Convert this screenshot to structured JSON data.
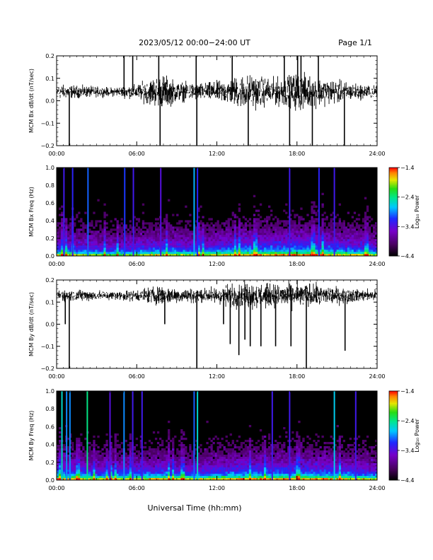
{
  "header": {
    "title": "2023/05/12  00:00−24:00 UT",
    "page": "Page 1/1"
  },
  "xlabel": "Universal Time (hh:mm)",
  "colors": {
    "background": "#ffffff",
    "trace": "#000000",
    "axis": "#000000",
    "spec_bg": "#000000"
  },
  "x_ticks": [
    "00:00",
    "06:00",
    "12:00",
    "18:00",
    "24:00"
  ],
  "chart_data": [
    {
      "type": "line",
      "ylabel": "MCM Bx dB/dt (nT/sec)",
      "xlim": [
        0,
        24
      ],
      "ylim": [
        -0.2,
        0.2
      ],
      "yticks": [
        "0.2",
        "0.1",
        "0.0",
        "−0.1",
        "−0.2"
      ],
      "ytick_values": [
        0.2,
        0.1,
        0.0,
        -0.1,
        -0.2
      ],
      "baseline": 0.04,
      "activity_envelope": {
        "hours": [
          0,
          2,
          4,
          6,
          7,
          8,
          9,
          10,
          11,
          12,
          13,
          14,
          15,
          16,
          17,
          18,
          19,
          20,
          21,
          22,
          23,
          24
        ],
        "amplitude": [
          0.05,
          0.04,
          0.03,
          0.05,
          0.09,
          0.12,
          0.07,
          0.06,
          0.06,
          0.07,
          0.09,
          0.12,
          0.11,
          0.09,
          0.1,
          0.13,
          0.11,
          0.09,
          0.08,
          0.06,
          0.05,
          0.04
        ]
      },
      "spikes": [
        {
          "hour": 0.95,
          "value": -0.2
        },
        {
          "hour": 5.05,
          "value": 0.2
        },
        {
          "hour": 5.7,
          "value": 0.2
        },
        {
          "hour": 7.65,
          "value": 0.2
        },
        {
          "hour": 7.75,
          "value": -0.2
        },
        {
          "hour": 10.45,
          "value": 0.2
        },
        {
          "hour": 10.5,
          "value": -0.2
        },
        {
          "hour": 13.15,
          "value": 0.2
        },
        {
          "hour": 14.35,
          "value": -0.2
        },
        {
          "hour": 17.05,
          "value": 0.2
        },
        {
          "hour": 17.45,
          "value": -0.2
        },
        {
          "hour": 18.05,
          "value": 0.2
        },
        {
          "hour": 18.3,
          "value": 0.2
        },
        {
          "hour": 19.15,
          "value": -0.2
        },
        {
          "hour": 19.6,
          "value": 0.2
        },
        {
          "hour": 21.55,
          "value": -0.2
        }
      ]
    },
    {
      "type": "heatmap",
      "ylabel": "MCM Bx Freq (Hz)",
      "xlim": [
        0,
        24
      ],
      "ylim": [
        0,
        1.0
      ],
      "yticks": [
        "1.0",
        "0.8",
        "0.6",
        "0.4",
        "0.2",
        "0.0"
      ],
      "ytick_values": [
        1.0,
        0.8,
        0.6,
        0.4,
        0.2,
        0.0
      ],
      "colorbar": {
        "label": "Log₁₀ Power",
        "ticks": [
          "−1.4",
          "−2.4",
          "−3.4",
          "−4.4"
        ],
        "tick_values": [
          -1.4,
          -2.4,
          -3.4,
          -4.4
        ],
        "range": [
          -4.4,
          -1.4
        ]
      },
      "activity_envelope": {
        "hours": [
          0,
          2,
          4,
          6,
          8,
          10,
          12,
          14,
          16,
          18,
          20,
          22,
          24
        ],
        "strength": [
          0.55,
          0.5,
          0.45,
          0.5,
          0.55,
          0.5,
          0.55,
          0.6,
          0.6,
          0.65,
          0.6,
          0.55,
          0.5
        ]
      },
      "vertical_lines": [
        {
          "hour": 0.55,
          "power": -3.3
        },
        {
          "hour": 1.2,
          "power": -3.2
        },
        {
          "hour": 2.35,
          "power": -3.0
        },
        {
          "hour": 5.1,
          "power": -3.1
        },
        {
          "hour": 5.75,
          "power": -3.3
        },
        {
          "hour": 7.8,
          "power": -3.4
        },
        {
          "hour": 10.3,
          "power": -2.8
        },
        {
          "hour": 10.55,
          "power": -3.2
        },
        {
          "hour": 17.45,
          "power": -3.3
        },
        {
          "hour": 19.65,
          "power": -3.2
        },
        {
          "hour": 20.8,
          "power": -3.3
        }
      ]
    },
    {
      "type": "line",
      "ylabel": "MCM By dB/dt (nT/sec)",
      "xlim": [
        0,
        24
      ],
      "ylim": [
        -0.2,
        0.2
      ],
      "yticks": [
        "0.2",
        "0.1",
        "0.0",
        "−0.1",
        "−0.2"
      ],
      "ytick_values": [
        0.2,
        0.1,
        0.0,
        -0.1,
        -0.2
      ],
      "baseline": 0.13,
      "activity_envelope": {
        "hours": [
          0,
          2,
          4,
          6,
          7,
          8,
          9,
          10,
          11,
          12,
          13,
          14,
          15,
          16,
          17,
          18,
          19,
          20,
          21,
          22,
          23,
          24
        ],
        "amplitude": [
          0.04,
          0.04,
          0.03,
          0.04,
          0.06,
          0.07,
          0.05,
          0.05,
          0.05,
          0.06,
          0.08,
          0.09,
          0.09,
          0.08,
          0.08,
          0.09,
          0.08,
          0.07,
          0.06,
          0.05,
          0.04,
          0.04
        ]
      },
      "spikes": [
        {
          "hour": 0.65,
          "value": 0.0
        },
        {
          "hour": 0.95,
          "value": -0.2
        },
        {
          "hour": 8.1,
          "value": 0.0
        },
        {
          "hour": 10.5,
          "value": -0.2
        },
        {
          "hour": 12.5,
          "value": 0.0
        },
        {
          "hour": 13.0,
          "value": -0.09
        },
        {
          "hour": 13.65,
          "value": -0.14
        },
        {
          "hour": 14.1,
          "value": -0.07
        },
        {
          "hour": 14.5,
          "value": -0.1
        },
        {
          "hour": 15.3,
          "value": -0.1
        },
        {
          "hour": 16.4,
          "value": -0.1
        },
        {
          "hour": 17.55,
          "value": -0.1
        },
        {
          "hour": 18.7,
          "value": -0.2
        },
        {
          "hour": 21.6,
          "value": -0.12
        }
      ]
    },
    {
      "type": "heatmap",
      "ylabel": "MCM By Freq (Hz)",
      "xlim": [
        0,
        24
      ],
      "ylim": [
        0,
        1.0
      ],
      "yticks": [
        "1.0",
        "0.8",
        "0.6",
        "0.4",
        "0.2",
        "0.0"
      ],
      "ytick_values": [
        1.0,
        0.8,
        0.6,
        0.4,
        0.2,
        0.0
      ],
      "colorbar": {
        "label": "Log₁₀ Power",
        "ticks": [
          "−1.4",
          "−2.4",
          "−3.4",
          "−4.4"
        ],
        "tick_values": [
          -1.4,
          -2.4,
          -3.4,
          -4.4
        ],
        "range": [
          -4.4,
          -1.4
        ]
      },
      "activity_envelope": {
        "hours": [
          0,
          2,
          4,
          6,
          8,
          10,
          12,
          14,
          16,
          18,
          20,
          22,
          24
        ],
        "strength": [
          0.6,
          0.55,
          0.5,
          0.55,
          0.55,
          0.5,
          0.55,
          0.6,
          0.6,
          0.6,
          0.6,
          0.55,
          0.5
        ]
      },
      "vertical_lines": [
        {
          "hour": 0.4,
          "power": -2.6
        },
        {
          "hour": 0.75,
          "power": -2.9
        },
        {
          "hour": 1.0,
          "power": -2.9
        },
        {
          "hour": 2.3,
          "power": -2.4
        },
        {
          "hour": 4.0,
          "power": -3.4
        },
        {
          "hour": 5.05,
          "power": -2.9
        },
        {
          "hour": 5.7,
          "power": -3.3
        },
        {
          "hour": 6.4,
          "power": -3.3
        },
        {
          "hour": 10.3,
          "power": -3.0
        },
        {
          "hour": 10.55,
          "power": -2.6
        },
        {
          "hour": 16.15,
          "power": -3.3
        },
        {
          "hour": 17.45,
          "power": -3.3
        },
        {
          "hour": 20.8,
          "power": -2.7
        },
        {
          "hour": 22.4,
          "power": -3.3
        }
      ]
    }
  ]
}
